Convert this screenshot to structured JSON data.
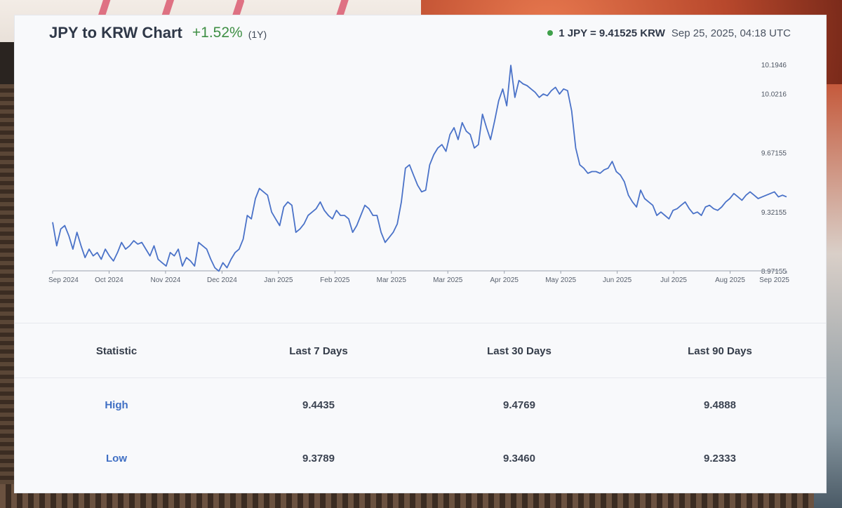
{
  "header": {
    "title": "JPY to KRW Chart",
    "change": "+1.52%",
    "period": "(1Y)",
    "rate": "1 JPY = 9.41525 KRW",
    "timestamp": "Sep 25, 2025, 04:18 UTC"
  },
  "colors": {
    "line": "#4a72c8",
    "positive": "#3f8f45",
    "accent_label": "#3f6fc4",
    "dot": "#3fa04a"
  },
  "chart_data": {
    "type": "line",
    "title": "JPY to KRW Chart",
    "x_tick_labels": [
      "Sep 2024",
      "Oct 2024",
      "Nov 2024",
      "Dec 2024",
      "Jan 2025",
      "Feb 2025",
      "Mar 2025",
      "Mar 2025",
      "Apr 2025",
      "May 2025",
      "Jun 2025",
      "Jul 2025",
      "Aug 2025",
      "Sep 2025"
    ],
    "y_tick_labels": [
      "10.1946",
      "10.0216",
      "9.67155",
      "9.32155",
      "8.97155"
    ],
    "y_tick_values": [
      10.1946,
      10.0216,
      9.67155,
      9.32155,
      8.97155
    ],
    "ylim": [
      8.97155,
      10.1946
    ],
    "grid": false,
    "series": [
      {
        "values": [
          9.26,
          9.12,
          9.22,
          9.24,
          9.18,
          9.1,
          9.2,
          9.12,
          9.05,
          9.1,
          9.06,
          9.08,
          9.04,
          9.1,
          9.06,
          9.03,
          9.08,
          9.14,
          9.1,
          9.12,
          9.15,
          9.13,
          9.14,
          9.1,
          9.06,
          9.12,
          9.04,
          9.02,
          9.0,
          9.08,
          9.06,
          9.1,
          9.0,
          9.05,
          9.03,
          9.0,
          9.14,
          9.12,
          9.1,
          9.04,
          8.99,
          8.97,
          9.02,
          8.99,
          9.04,
          9.08,
          9.1,
          9.16,
          9.3,
          9.28,
          9.4,
          9.46,
          9.44,
          9.42,
          9.32,
          9.28,
          9.24,
          9.35,
          9.38,
          9.36,
          9.2,
          9.22,
          9.25,
          9.3,
          9.32,
          9.34,
          9.38,
          9.33,
          9.3,
          9.28,
          9.33,
          9.3,
          9.3,
          9.28,
          9.2,
          9.24,
          9.3,
          9.36,
          9.34,
          9.3,
          9.3,
          9.2,
          9.14,
          9.17,
          9.2,
          9.25,
          9.38,
          9.58,
          9.6,
          9.54,
          9.48,
          9.44,
          9.45,
          9.6,
          9.66,
          9.7,
          9.72,
          9.68,
          9.78,
          9.82,
          9.75,
          9.85,
          9.8,
          9.78,
          9.7,
          9.72,
          9.9,
          9.82,
          9.75,
          9.86,
          9.98,
          10.05,
          9.95,
          10.19,
          10.0,
          10.1,
          10.08,
          10.07,
          10.05,
          10.03,
          10.0,
          10.02,
          10.01,
          10.04,
          10.06,
          10.02,
          10.05,
          10.04,
          9.92,
          9.7,
          9.6,
          9.58,
          9.55,
          9.56,
          9.56,
          9.55,
          9.57,
          9.58,
          9.62,
          9.56,
          9.54,
          9.5,
          9.42,
          9.38,
          9.35,
          9.45,
          9.4,
          9.38,
          9.36,
          9.3,
          9.32,
          9.3,
          9.28,
          9.33,
          9.34,
          9.36,
          9.38,
          9.34,
          9.31,
          9.32,
          9.3,
          9.35,
          9.36,
          9.34,
          9.33,
          9.35,
          9.38,
          9.4,
          9.43,
          9.41,
          9.39,
          9.42,
          9.44,
          9.42,
          9.4,
          9.41,
          9.42,
          9.43,
          9.44,
          9.41,
          9.42,
          9.41
        ]
      }
    ]
  },
  "table": {
    "headers": [
      "Statistic",
      "Last 7 Days",
      "Last 30 Days",
      "Last 90 Days"
    ],
    "rows": [
      {
        "label": "High",
        "values": [
          "9.4435",
          "9.4769",
          "9.4888"
        ]
      },
      {
        "label": "Low",
        "values": [
          "9.3789",
          "9.3460",
          "9.2333"
        ]
      }
    ]
  }
}
